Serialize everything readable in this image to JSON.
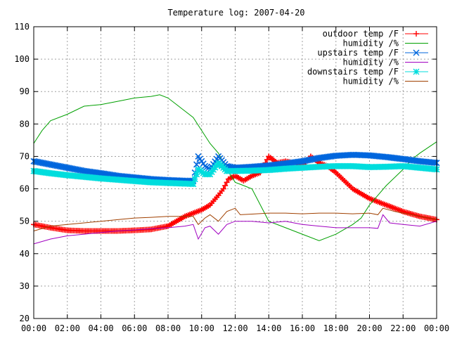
{
  "chart_data": {
    "type": "line",
    "title": "Temperature log: 2007-04-20",
    "xlabel": "",
    "ylabel": "",
    "xlim": [
      "00:00",
      "24:00"
    ],
    "ylim": [
      20,
      110
    ],
    "x_tick_labels": [
      "00:00",
      "02:00",
      "04:00",
      "06:00",
      "08:00",
      "10:00",
      "12:00",
      "14:00",
      "16:00",
      "18:00",
      "20:00",
      "22:00",
      "00:00"
    ],
    "y_tick_labels": [
      "20",
      "30",
      "40",
      "50",
      "60",
      "70",
      "80",
      "90",
      "100",
      "110"
    ],
    "grid": true,
    "legend_position": "top-right",
    "series": [
      {
        "name": "outdoor temp /F",
        "color": "#ff0000",
        "marker": "plus",
        "points": [
          [
            0,
            49
          ],
          [
            1,
            48
          ],
          [
            2,
            47.2
          ],
          [
            3,
            47
          ],
          [
            4,
            47
          ],
          [
            5,
            47
          ],
          [
            6,
            47.2
          ],
          [
            7,
            47.5
          ],
          [
            8,
            48.5
          ],
          [
            8.5,
            50
          ],
          [
            9,
            51.5
          ],
          [
            9.5,
            52.5
          ],
          [
            10,
            53.5
          ],
          [
            10.5,
            55
          ],
          [
            11,
            58
          ],
          [
            11.3,
            60
          ],
          [
            11.6,
            63
          ],
          [
            12,
            64
          ],
          [
            12.5,
            62.5
          ],
          [
            13,
            64
          ],
          [
            13.5,
            65
          ],
          [
            14,
            70
          ],
          [
            14.5,
            68
          ],
          [
            15,
            68.5
          ],
          [
            15.5,
            68
          ],
          [
            16,
            67
          ],
          [
            16.5,
            70
          ],
          [
            17,
            68
          ],
          [
            17.5,
            67
          ],
          [
            18,
            65
          ],
          [
            18.5,
            62.5
          ],
          [
            19,
            60
          ],
          [
            19.5,
            58.5
          ],
          [
            20,
            57
          ],
          [
            20.5,
            56
          ],
          [
            21,
            55
          ],
          [
            22,
            53
          ],
          [
            23,
            51.5
          ],
          [
            24,
            50.5
          ]
        ]
      },
      {
        "name": "humidity /%",
        "color": "#00a000",
        "marker": "none",
        "points": [
          [
            0,
            74
          ],
          [
            0.5,
            78
          ],
          [
            1,
            81
          ],
          [
            2,
            83
          ],
          [
            3,
            85.5
          ],
          [
            4,
            86
          ],
          [
            5,
            87
          ],
          [
            6,
            88
          ],
          [
            7,
            88.5
          ],
          [
            7.5,
            89
          ],
          [
            8,
            88
          ],
          [
            9,
            84
          ],
          [
            9.5,
            82
          ],
          [
            10,
            78
          ],
          [
            10.5,
            74
          ],
          [
            11,
            71
          ],
          [
            11.5,
            66
          ],
          [
            12,
            62
          ],
          [
            12.5,
            61
          ],
          [
            13,
            60
          ],
          [
            14,
            50
          ],
          [
            15,
            48
          ],
          [
            16,
            46
          ],
          [
            17,
            44
          ],
          [
            18,
            46
          ],
          [
            19,
            49
          ],
          [
            19.5,
            51
          ],
          [
            20,
            55
          ],
          [
            20.5,
            58
          ],
          [
            21,
            61
          ],
          [
            22,
            66
          ],
          [
            22.5,
            69
          ],
          [
            23,
            71
          ],
          [
            24,
            74.5
          ]
        ]
      },
      {
        "name": "upstairs temp /F",
        "color": "#0066dd",
        "marker": "x",
        "points": [
          [
            0,
            68.5
          ],
          [
            1,
            67.5
          ],
          [
            2,
            66.5
          ],
          [
            3,
            65.5
          ],
          [
            4,
            64.8
          ],
          [
            5,
            64
          ],
          [
            6,
            63.5
          ],
          [
            7,
            63
          ],
          [
            8,
            62.7
          ],
          [
            9,
            62.5
          ],
          [
            9.5,
            62.5
          ],
          [
            9.8,
            70
          ],
          [
            10.2,
            67
          ],
          [
            10.5,
            66
          ],
          [
            11,
            70
          ],
          [
            11.5,
            67
          ],
          [
            12,
            66.5
          ],
          [
            13,
            66.8
          ],
          [
            14,
            67.2
          ],
          [
            15,
            67.8
          ],
          [
            16,
            68.5
          ],
          [
            17,
            69.5
          ],
          [
            18,
            70.2
          ],
          [
            19,
            70.5
          ],
          [
            20,
            70.3
          ],
          [
            21,
            69.8
          ],
          [
            22,
            69.2
          ],
          [
            23,
            68.5
          ],
          [
            24,
            68
          ]
        ]
      },
      {
        "name": "humidity /%",
        "color": "#a000c0",
        "marker": "none",
        "points": [
          [
            0,
            43
          ],
          [
            1,
            44.5
          ],
          [
            2,
            45.5
          ],
          [
            3,
            46
          ],
          [
            4,
            46.5
          ],
          [
            5,
            47
          ],
          [
            6,
            47.3
          ],
          [
            7,
            47.7
          ],
          [
            8,
            48
          ],
          [
            9,
            48.5
          ],
          [
            9.5,
            49
          ],
          [
            9.8,
            44.5
          ],
          [
            10.2,
            48
          ],
          [
            10.5,
            48.5
          ],
          [
            11,
            46
          ],
          [
            11.5,
            49
          ],
          [
            12,
            50
          ],
          [
            13,
            50
          ],
          [
            14,
            49.5
          ],
          [
            15,
            50
          ],
          [
            16,
            49
          ],
          [
            17,
            48.5
          ],
          [
            18,
            48
          ],
          [
            19,
            48
          ],
          [
            20,
            48
          ],
          [
            20.5,
            47.8
          ],
          [
            20.8,
            52
          ],
          [
            21.2,
            49.5
          ],
          [
            22,
            49
          ],
          [
            23,
            48.5
          ],
          [
            24,
            50
          ]
        ]
      },
      {
        "name": "downstairs temp /F",
        "color": "#00dddd",
        "marker": "star",
        "points": [
          [
            0,
            65.5
          ],
          [
            1,
            64.8
          ],
          [
            2,
            64.2
          ],
          [
            3,
            63.7
          ],
          [
            4,
            63.2
          ],
          [
            5,
            62.8
          ],
          [
            6,
            62.4
          ],
          [
            7,
            62
          ],
          [
            8,
            61.8
          ],
          [
            9,
            61.6
          ],
          [
            9.5,
            61.5
          ],
          [
            9.8,
            66
          ],
          [
            10.2,
            64.5
          ],
          [
            10.5,
            64.5
          ],
          [
            11,
            68
          ],
          [
            11.5,
            65.5
          ],
          [
            12,
            65.5
          ],
          [
            13,
            65.6
          ],
          [
            14,
            65.8
          ],
          [
            15,
            66.2
          ],
          [
            16,
            66.5
          ],
          [
            17,
            66.8
          ],
          [
            18,
            67
          ],
          [
            19,
            67
          ],
          [
            20,
            66.7
          ],
          [
            21,
            66.8
          ],
          [
            22,
            67
          ],
          [
            23,
            66.5
          ],
          [
            24,
            66
          ]
        ]
      },
      {
        "name": "humidity /%",
        "color": "#a04000",
        "marker": "none",
        "points": [
          [
            0,
            47
          ],
          [
            1,
            48.5
          ],
          [
            2,
            49
          ],
          [
            3,
            49.5
          ],
          [
            4,
            50
          ],
          [
            5,
            50.5
          ],
          [
            6,
            51
          ],
          [
            7,
            51.2
          ],
          [
            8,
            51.5
          ],
          [
            9,
            51.5
          ],
          [
            9.5,
            51.5
          ],
          [
            9.8,
            49
          ],
          [
            10.2,
            51
          ],
          [
            10.5,
            52
          ],
          [
            11,
            50
          ],
          [
            11.5,
            53
          ],
          [
            12,
            54
          ],
          [
            12.3,
            52
          ],
          [
            13,
            52.2
          ],
          [
            14,
            52.5
          ],
          [
            15,
            52.5
          ],
          [
            16,
            52.3
          ],
          [
            17,
            52.5
          ],
          [
            18,
            52.5
          ],
          [
            19,
            52.3
          ],
          [
            20,
            52.5
          ],
          [
            20.5,
            52
          ],
          [
            20.8,
            54
          ],
          [
            21.5,
            53
          ],
          [
            22,
            52.5
          ],
          [
            23,
            51.5
          ],
          [
            24,
            50.5
          ]
        ]
      }
    ]
  }
}
